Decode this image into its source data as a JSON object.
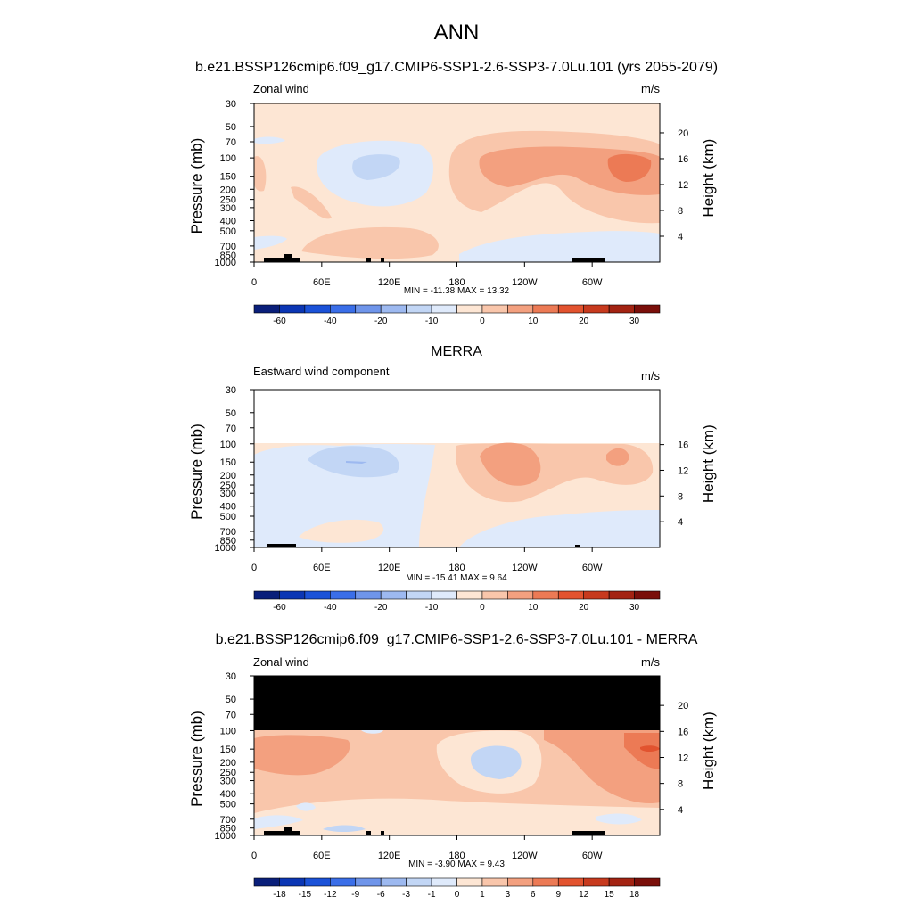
{
  "figure": {
    "main_title": "ANN"
  },
  "chart_data": [
    {
      "type": "heatmap",
      "title": "b.e21.BSSP126cmip6.f09_g17.CMIP6-SSP1-2.6-SSP3-7.0Lu.101 (yrs 2055-2079)",
      "left_label": "Zonal wind",
      "right_label": "m/s",
      "ylabel": "Pressure (mb)",
      "ylabel_right": "Height (km)",
      "x_ticks": [
        "0",
        "60E",
        "120E",
        "180",
        "120W",
        "60W"
      ],
      "y_ticks": [
        "30",
        "50",
        "70",
        "100",
        "150",
        "200",
        "250",
        "300",
        "400",
        "500",
        "700",
        "850",
        "1000"
      ],
      "height_ticks": [
        "20",
        "16",
        "12",
        "8",
        "4"
      ],
      "stats": "MIN = -11.38  MAX =  13.32",
      "colorbar_labels": [
        "-60",
        "-40",
        "-20",
        "-10",
        "0",
        "10",
        "20",
        "30"
      ],
      "masked_above_mb": null
    },
    {
      "type": "heatmap",
      "title": "MERRA",
      "left_label": "Eastward wind component",
      "right_label": "m/s",
      "ylabel": "Pressure (mb)",
      "ylabel_right": "Height (km)",
      "x_ticks": [
        "0",
        "60E",
        "120E",
        "180",
        "120W",
        "60W"
      ],
      "y_ticks": [
        "30",
        "50",
        "70",
        "100",
        "150",
        "200",
        "250",
        "300",
        "400",
        "500",
        "700",
        "850",
        "1000"
      ],
      "height_ticks": [
        "16",
        "12",
        "8",
        "4"
      ],
      "stats": "MIN = -15.41  MAX =   9.64",
      "colorbar_labels": [
        "-60",
        "-40",
        "-20",
        "-10",
        "0",
        "10",
        "20",
        "30"
      ],
      "masked_above_mb": 100
    },
    {
      "type": "heatmap",
      "title": "b.e21.BSSP126cmip6.f09_g17.CMIP6-SSP1-2.6-SSP3-7.0Lu.101 - MERRA",
      "left_label": "Zonal wind",
      "right_label": "m/s",
      "ylabel": "Pressure (mb)",
      "ylabel_right": "Height (km)",
      "x_ticks": [
        "0",
        "60E",
        "120E",
        "180",
        "120W",
        "60W"
      ],
      "y_ticks": [
        "30",
        "50",
        "70",
        "100",
        "150",
        "200",
        "250",
        "300",
        "400",
        "500",
        "700",
        "850",
        "1000"
      ],
      "height_ticks": [
        "20",
        "16",
        "12",
        "8",
        "4"
      ],
      "stats": "MIN =  -3.90  MAX =   9.43",
      "colorbar_labels": [
        "-18",
        "-15",
        "-12",
        "-9",
        "-6",
        "-3",
        "-1",
        "0",
        "1",
        "3",
        "6",
        "9",
        "12",
        "15",
        "18"
      ],
      "masked_above_mb": 100
    }
  ],
  "colors": {
    "colorbar_16": [
      "#0a1f7a",
      "#0b36b4",
      "#1b52d8",
      "#3a6ee8",
      "#6f95ea",
      "#9db9f0",
      "#c2d6f5",
      "#dfeafb",
      "#fde6d4",
      "#f9c6ab",
      "#f3a07f",
      "#ec7a55",
      "#e2532f",
      "#c73a1e",
      "#a32312",
      "#7a0f0a"
    ],
    "panel1_bands": [
      "#fde6d4",
      "#f9c6ab",
      "#f3a07f",
      "#ec7a55"
    ],
    "blue_bands": [
      "#dfeafb",
      "#c2d6f5",
      "#9db9f0"
    ]
  }
}
